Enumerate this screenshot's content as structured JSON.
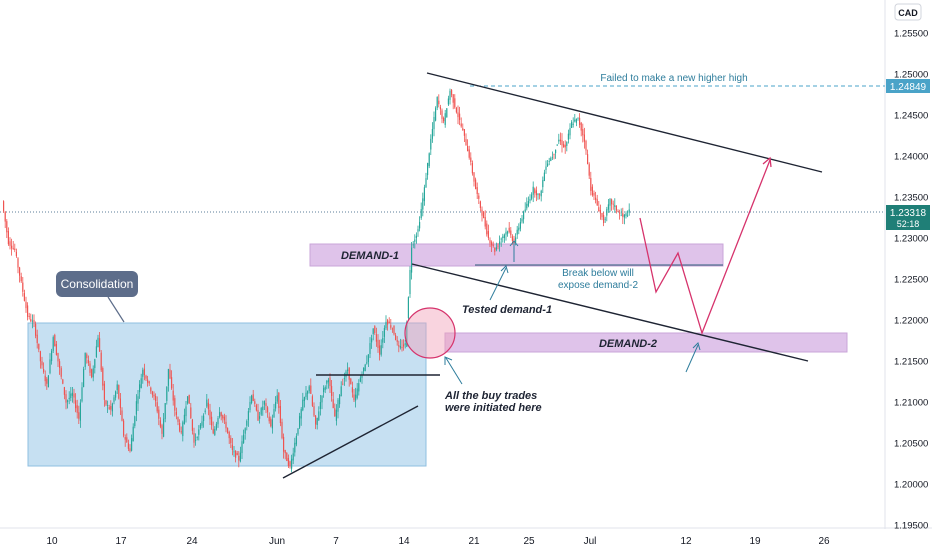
{
  "currency_label": "CAD",
  "price_axis": {
    "ticks": [
      "1.25500",
      "1.25000",
      "1.24500",
      "1.24000",
      "1.23500",
      "1.23000",
      "1.22500",
      "1.22000",
      "1.21500",
      "1.21000",
      "1.20500",
      "1.20000",
      "1.19500"
    ],
    "high_tag": "1.24849",
    "last_price_tag": "1.23318",
    "countdown": "52:18"
  },
  "time_axis": {
    "ticks": [
      "10",
      "17",
      "24",
      "Jun",
      "7",
      "14",
      "21",
      "25",
      "Jul",
      "12",
      "19",
      "26"
    ]
  },
  "annotations": {
    "consolidation": "Consolidation",
    "demand1": "DEMAND-1",
    "demand2": "DEMAND-2",
    "failed_high": "Failed to make a new higher high",
    "break_below_1": "Break below will",
    "break_below_2": "expose demand-2",
    "tested_demand": "Tested demand-1",
    "buy_trades_1": "All the buy trades",
    "buy_trades_2": "were initiated here"
  },
  "colors": {
    "up": "#26a69a",
    "down": "#ef5350",
    "consolidation_fill": "#b3d6ee",
    "demand_fill": "#d9b8e6",
    "projection": "#d6336c",
    "annotation_text": "#2e7d9c",
    "badge": "#5d6d8a"
  },
  "chart_data": {
    "type": "candlestick",
    "symbol_currency": "CAD",
    "ylim": [
      1.194,
      1.258
    ],
    "x_ticks": [
      "10",
      "17",
      "24",
      "Jun",
      "7",
      "14",
      "21",
      "25",
      "Jul",
      "12",
      "19",
      "26"
    ],
    "last_price": 1.23318,
    "marked_high": 1.24849,
    "price_path_approx": [
      [
        0,
        1.2345
      ],
      [
        4,
        1.2295
      ],
      [
        8,
        1.2285
      ],
      [
        12,
        1.2245
      ],
      [
        16,
        1.2205
      ],
      [
        20,
        1.2195
      ],
      [
        24,
        1.215
      ],
      [
        28,
        1.212
      ],
      [
        32,
        1.218
      ],
      [
        36,
        1.214
      ],
      [
        40,
        1.21
      ],
      [
        44,
        1.211
      ],
      [
        48,
        1.208
      ],
      [
        52,
        1.216
      ],
      [
        56,
        1.213
      ],
      [
        60,
        1.218
      ],
      [
        64,
        1.21
      ],
      [
        68,
        1.209
      ],
      [
        72,
        1.212
      ],
      [
        76,
        1.206
      ],
      [
        80,
        1.204
      ],
      [
        84,
        1.21
      ],
      [
        88,
        1.214
      ],
      [
        92,
        1.212
      ],
      [
        96,
        1.21
      ],
      [
        100,
        1.206
      ],
      [
        104,
        1.214
      ],
      [
        108,
        1.209
      ],
      [
        112,
        1.206
      ],
      [
        116,
        1.211
      ],
      [
        120,
        1.205
      ],
      [
        124,
        1.207
      ],
      [
        128,
        1.21
      ],
      [
        132,
        1.206
      ],
      [
        136,
        1.209
      ],
      [
        140,
        1.207
      ],
      [
        144,
        1.204
      ],
      [
        148,
        1.203
      ],
      [
        152,
        1.207
      ],
      [
        156,
        1.211
      ],
      [
        160,
        1.208
      ],
      [
        164,
        1.21
      ],
      [
        168,
        1.207
      ],
      [
        172,
        1.211
      ],
      [
        176,
        1.204
      ],
      [
        180,
        1.202
      ],
      [
        184,
        1.206
      ],
      [
        188,
        1.21
      ],
      [
        192,
        1.212
      ],
      [
        196,
        1.207
      ],
      [
        200,
        1.211
      ],
      [
        204,
        1.213
      ],
      [
        208,
        1.208
      ],
      [
        212,
        1.212
      ],
      [
        216,
        1.214
      ],
      [
        220,
        1.21
      ],
      [
        224,
        1.213
      ],
      [
        228,
        1.215
      ],
      [
        232,
        1.219
      ],
      [
        236,
        1.216
      ],
      [
        240,
        1.22
      ],
      [
        244,
        1.219
      ],
      [
        248,
        1.2165
      ],
      [
        252,
        1.217
      ],
      [
        256,
        1.229
      ],
      [
        260,
        1.231
      ],
      [
        264,
        1.236
      ],
      [
        268,
        1.242
      ],
      [
        272,
        1.247
      ],
      [
        276,
        1.244
      ],
      [
        280,
        1.248
      ],
      [
        284,
        1.2455
      ],
      [
        288,
        1.243
      ],
      [
        292,
        1.24
      ],
      [
        296,
        1.236
      ],
      [
        300,
        1.233
      ],
      [
        304,
        1.23
      ],
      [
        308,
        1.2285
      ],
      [
        312,
        1.23
      ],
      [
        316,
        1.231
      ],
      [
        320,
        1.2295
      ],
      [
        324,
        1.232
      ],
      [
        328,
        1.234
      ],
      [
        332,
        1.236
      ],
      [
        336,
        1.235
      ],
      [
        340,
        1.239
      ],
      [
        344,
        1.24
      ],
      [
        348,
        1.242
      ],
      [
        352,
        1.241
      ],
      [
        356,
        1.244
      ],
      [
        360,
        1.2445
      ],
      [
        364,
        1.242
      ],
      [
        368,
        1.236
      ],
      [
        372,
        1.234
      ],
      [
        376,
        1.232
      ],
      [
        380,
        1.2345
      ],
      [
        384,
        1.2335
      ],
      [
        388,
        1.2325
      ],
      [
        392,
        1.23318
      ]
    ],
    "zones": [
      {
        "label": "Consolidation",
        "price_range": [
          1.2025,
          1.22
        ]
      },
      {
        "label": "DEMAND-1",
        "price_range": [
          1.227,
          1.2292
        ]
      },
      {
        "label": "DEMAND-2",
        "price_range": [
          1.2163,
          1.2185
        ]
      }
    ],
    "grid": false
  }
}
